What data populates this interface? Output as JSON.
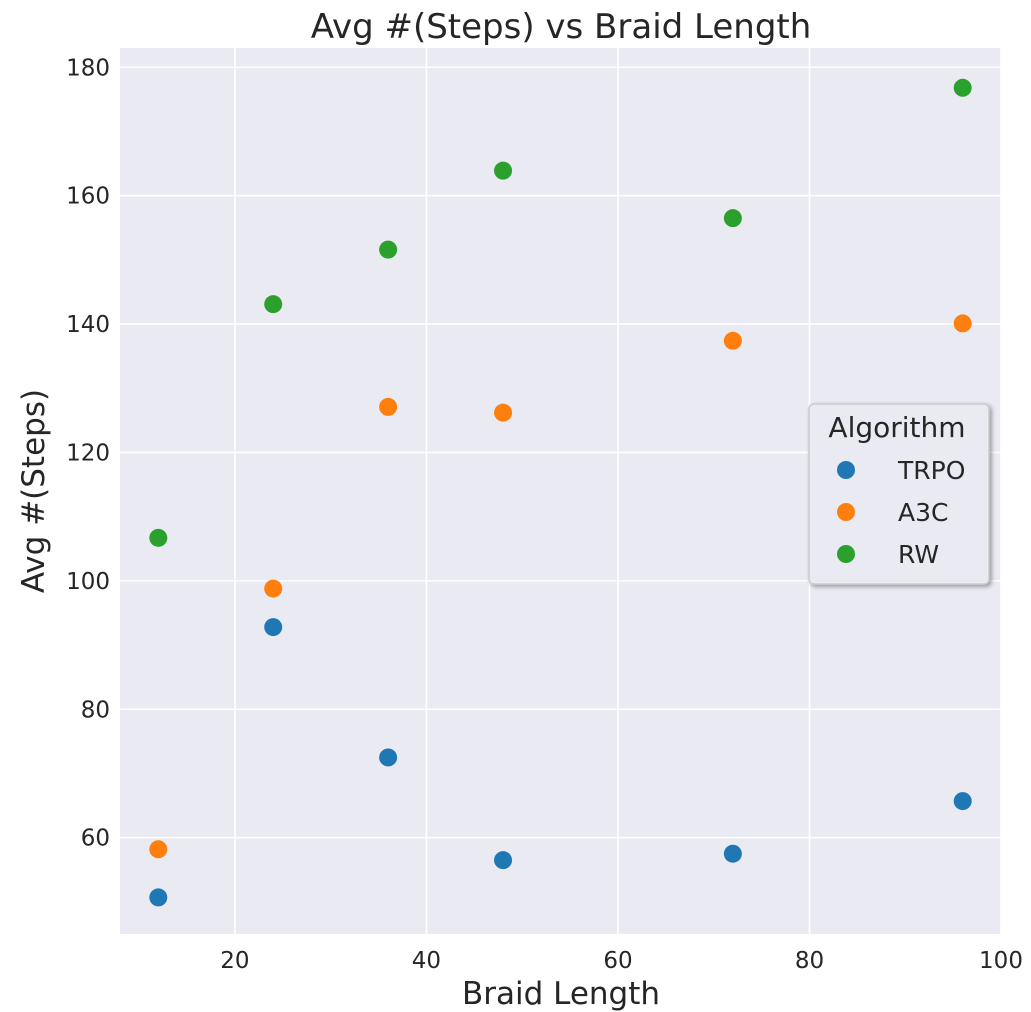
{
  "chart_data": {
    "type": "scatter",
    "title": "Avg #(Steps) vs Braid Length",
    "xlabel": "Braid Length",
    "ylabel": "Avg #(Steps)",
    "xlim": [
      8,
      100
    ],
    "ylim": [
      45,
      183
    ],
    "xticks": [
      20,
      40,
      60,
      80,
      100
    ],
    "yticks": [
      60,
      80,
      100,
      120,
      140,
      160,
      180
    ],
    "grid": true,
    "legend": {
      "title": "Algorithm",
      "placement": "center-right"
    },
    "series": [
      {
        "name": "TRPO",
        "color": "#1f77b4",
        "x": [
          12,
          24,
          36,
          48,
          72,
          96
        ],
        "y": [
          50.7,
          92.8,
          72.5,
          56.5,
          57.5,
          65.7
        ]
      },
      {
        "name": "A3C",
        "color": "#ff7f0e",
        "x": [
          12,
          24,
          36,
          48,
          72,
          96
        ],
        "y": [
          58.2,
          98.8,
          127.1,
          126.2,
          137.4,
          140.1
        ]
      },
      {
        "name": "RW",
        "color": "#2ca02c",
        "x": [
          12,
          24,
          36,
          48,
          72,
          96
        ],
        "y": [
          106.7,
          143.1,
          151.6,
          163.9,
          156.5,
          176.8
        ]
      }
    ]
  }
}
